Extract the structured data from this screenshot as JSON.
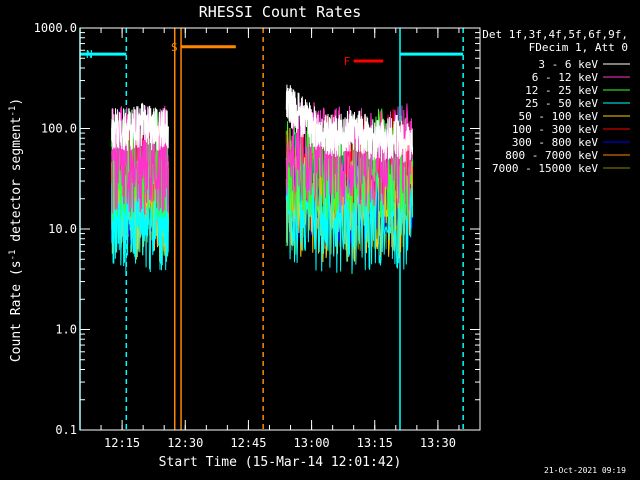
{
  "chart_data": {
    "type": "line",
    "title": "RHESSI Count Rates",
    "xlabel": "Start Time (15-Mar-14 12:01:42)",
    "ylabel_prefix": "Count Rate (s",
    "ylabel_sup": "-1",
    "ylabel_suffix": " detector segment",
    "ylabel_end": ")",
    "yscale": "log",
    "ylim": [
      0.1,
      1000
    ],
    "xlim": [
      "12:05:00",
      "13:40:00"
    ],
    "x_ticks": [
      "12:15",
      "12:30",
      "12:45",
      "13:00",
      "13:15",
      "13:30"
    ],
    "y_ticks": [
      "0.1",
      "1.0",
      "10.0",
      "100.0",
      "1000.0"
    ],
    "legend_header": [
      "Det 1f,3f,4f,5f,6f,9f,",
      "FDecim 1, Att 0"
    ],
    "series": [
      {
        "name": "3 - 6 keV",
        "color": "#ffffff",
        "segments": [
          {
            "x": [
              "12:12:30",
              "12:14",
              "12:16",
              "12:18",
              "12:20",
              "12:22",
              "12:24",
              "12:26"
            ],
            "y": [
              100,
              105,
              95,
              100,
              110,
              100,
              95,
              105
            ]
          },
          {
            "x": [
              "12:54",
              "12:56",
              "12:58",
              "13:00",
              "13:02",
              "13:04",
              "13:06",
              "13:08",
              "13:10",
              "13:12",
              "13:14",
              "13:16",
              "13:18",
              "13:20",
              "13:22",
              "13:24"
            ],
            "y": [
              175,
              150,
              125,
              105,
              95,
              88,
              80,
              90,
              100,
              90,
              80,
              75,
              80,
              85,
              70,
              65
            ]
          }
        ]
      },
      {
        "name": "6 - 12 keV",
        "color": "#ff33cc",
        "segments": [
          {
            "x": [
              "12:12:30",
              "12:16",
              "12:20",
              "12:24",
              "12:26"
            ],
            "y": [
              45,
              50,
              48,
              52,
              47
            ]
          },
          {
            "x": [
              "12:54",
              "13:00",
              "13:06",
              "13:12",
              "13:18",
              "13:24"
            ],
            "y": [
              55,
              52,
              48,
              50,
              52,
              50
            ]
          }
        ]
      },
      {
        "name": "12 - 25 keV",
        "color": "#33ff33",
        "segments": [
          {
            "x": [
              "12:12:30",
              "12:16",
              "12:20",
              "12:24",
              "12:26"
            ],
            "y": [
              40,
              45,
              42,
              46,
              40
            ]
          },
          {
            "x": [
              "12:54",
              "13:00",
              "13:06",
              "13:12",
              "13:18",
              "13:24"
            ],
            "y": [
              45,
              42,
              40,
              43,
              45,
              42
            ]
          }
        ]
      },
      {
        "name": "25 - 50 keV",
        "color": "#00ffff",
        "segments": [
          {
            "x": [
              "12:12:30",
              "12:16",
              "12:20",
              "12:24",
              "12:26"
            ],
            "y": [
              14,
              12,
              13,
              12,
              13
            ]
          },
          {
            "x": [
              "12:54",
              "13:00",
              "13:06",
              "13:12",
              "13:18",
              "13:24"
            ],
            "y": [
              14,
              13,
              12,
              13,
              14,
              13
            ]
          }
        ]
      },
      {
        "name": "50 - 100 keV",
        "color": "#ffcc00",
        "segments": [
          {
            "x": [
              "12:12:30",
              "12:16",
              "12:20",
              "12:24",
              "12:26"
            ],
            "y": [
              18,
              16,
              17,
              16,
              17
            ]
          },
          {
            "x": [
              "12:54",
              "13:00",
              "13:06",
              "13:12",
              "13:18",
              "13:24"
            ],
            "y": [
              18,
              17,
              16,
              17,
              18,
              17
            ]
          }
        ]
      },
      {
        "name": "100 - 300 keV",
        "color": "#ff0000",
        "segments": [
          {
            "x": [
              "12:12:30",
              "12:16",
              "12:20",
              "12:24",
              "12:26"
            ],
            "y": [
              35,
              38,
              36,
              40,
              35
            ]
          },
          {
            "x": [
              "12:54",
              "13:00",
              "13:06",
              "13:12",
              "13:18",
              "13:24"
            ],
            "y": [
              40,
              38,
              40,
              42,
              44,
              45
            ]
          }
        ]
      },
      {
        "name": "300 - 800 keV",
        "color": "#0000ff",
        "segments": [
          {
            "x": [
              "12:12:30",
              "12:16",
              "12:20",
              "12:24",
              "12:26"
            ],
            "y": [
              24,
              22,
              25,
              23,
              24
            ]
          },
          {
            "x": [
              "12:54",
              "13:00",
              "13:06",
              "13:12",
              "13:18",
              "13:24"
            ],
            "y": [
              26,
              24,
              23,
              25,
              27,
              26
            ]
          }
        ]
      },
      {
        "name": "800 - 7000 keV",
        "color": "#ff8800",
        "segments": [
          {
            "x": [
              "12:12:30",
              "12:16",
              "12:20",
              "12:24",
              "12:26"
            ],
            "y": [
              25,
              27,
              26,
              28,
              25
            ]
          },
          {
            "x": [
              "12:54",
              "13:00",
              "13:06",
              "13:12",
              "13:18",
              "13:24"
            ],
            "y": [
              28,
              26,
              25,
              27,
              29,
              30
            ]
          }
        ]
      },
      {
        "name": "7000 - 15000 keV",
        "color": "#888800",
        "segments": [
          {
            "x": [
              "12:12:30",
              "12:16",
              "12:20",
              "12:24",
              "12:26"
            ],
            "y": [
              20,
              19,
              20,
              19,
              20
            ]
          },
          {
            "x": [
              "12:54",
              "13:00",
              "13:06",
              "13:12",
              "13:18",
              "13:24"
            ],
            "y": [
              20,
              19,
              20,
              21,
              20,
              20
            ]
          }
        ]
      }
    ],
    "flag_bars": [
      {
        "label": "N",
        "color": "#00ffff",
        "y": 550,
        "segments": [
          [
            "12:05:00",
            "12:16:00"
          ],
          [
            "13:21:00",
            "13:36:00"
          ]
        ]
      },
      {
        "label": "S",
        "color": "#ff8800",
        "y": 650,
        "segments": [
          [
            "12:29:00",
            "12:42:00"
          ]
        ]
      },
      {
        "label": "F",
        "color": "#ff0000",
        "y": 470,
        "segments": [
          [
            "13:10:00",
            "13:17:00"
          ]
        ]
      }
    ],
    "vertical_lines": [
      {
        "x": "12:05:00",
        "color": "#00ffff",
        "style": "solid"
      },
      {
        "x": "12:16:00",
        "color": "#00ffff",
        "style": "dashed"
      },
      {
        "x": "12:27:30",
        "color": "#ff8800",
        "style": "solid"
      },
      {
        "x": "12:29:00",
        "color": "#ff8800",
        "style": "solid"
      },
      {
        "x": "12:48:30",
        "color": "#ff8800",
        "style": "dashed"
      },
      {
        "x": "13:21:00",
        "color": "#00ffff",
        "style": "solid"
      },
      {
        "x": "13:36:00",
        "color": "#00ffff",
        "style": "dashed"
      }
    ],
    "footer_timestamp": "21-Oct-2021 09:19"
  }
}
